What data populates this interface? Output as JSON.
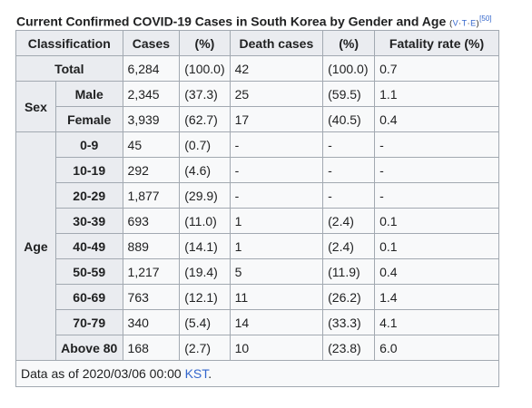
{
  "caption": {
    "title": "Current Confirmed COVID-19 Cases in South Korea by Gender and Age",
    "paren_open": "(",
    "v": "V",
    "sep1": "·",
    "t": "T",
    "sep2": "·",
    "e": "E",
    "paren_close": ")",
    "ref": "[50]"
  },
  "headers": [
    "Classification",
    "Cases",
    "(%)",
    "Death cases",
    "(%)",
    "Fatality rate (%)"
  ],
  "total": {
    "label": "Total",
    "cells": [
      "6,284",
      "(100.0)",
      "42",
      "(100.0)",
      "0.7"
    ]
  },
  "sex": {
    "label": "Sex",
    "rows": [
      {
        "label": "Male",
        "cells": [
          "2,345",
          "(37.3)",
          "25",
          "(59.5)",
          "1.1"
        ]
      },
      {
        "label": "Female",
        "cells": [
          "3,939",
          "(62.7)",
          "17",
          "(40.5)",
          "0.4"
        ]
      }
    ]
  },
  "age": {
    "label": "Age",
    "rows": [
      {
        "label": "0-9",
        "cells": [
          "45",
          "(0.7)",
          "-",
          "-",
          "-"
        ]
      },
      {
        "label": "10-19",
        "cells": [
          "292",
          "(4.6)",
          "-",
          "-",
          "-"
        ]
      },
      {
        "label": "20-29",
        "cells": [
          "1,877",
          "(29.9)",
          "-",
          "-",
          "-"
        ]
      },
      {
        "label": "30-39",
        "cells": [
          "693",
          "(11.0)",
          "1",
          "(2.4)",
          "0.1"
        ]
      },
      {
        "label": "40-49",
        "cells": [
          "889",
          "(14.1)",
          "1",
          "(2.4)",
          "0.1"
        ]
      },
      {
        "label": "50-59",
        "cells": [
          "1,217",
          "(19.4)",
          "5",
          "(11.9)",
          "0.4"
        ]
      },
      {
        "label": "60-69",
        "cells": [
          "763",
          "(12.1)",
          "11",
          "(26.2)",
          "1.4"
        ]
      },
      {
        "label": "70-79",
        "cells": [
          "340",
          "(5.4)",
          "14",
          "(33.3)",
          "4.1"
        ]
      },
      {
        "label": "Above 80",
        "cells": [
          "168",
          "(2.7)",
          "10",
          "(23.8)",
          "6.0"
        ]
      }
    ]
  },
  "footer": {
    "prefix": "Data as of 2020/03/06 00:00 ",
    "link": "KST",
    "suffix": "."
  }
}
